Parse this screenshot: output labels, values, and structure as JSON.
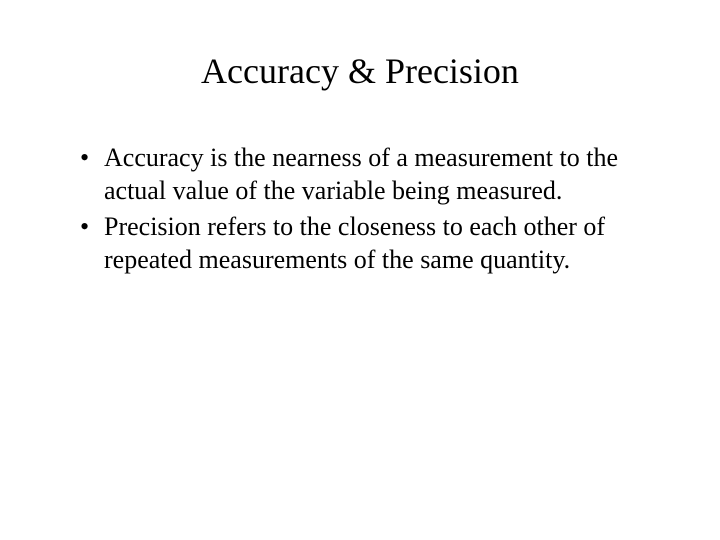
{
  "slide": {
    "title": "Accuracy & Precision",
    "bullets": [
      "Accuracy is the nearness of a measurement to the actual value of the variable being measured.",
      "Precision refers to the closeness to each other of repeated measurements of the same quantity."
    ]
  },
  "styling": {
    "background_color": "#ffffff",
    "text_color": "#000000",
    "title_fontsize": 36,
    "body_fontsize": 26,
    "font_family": "Times New Roman"
  }
}
